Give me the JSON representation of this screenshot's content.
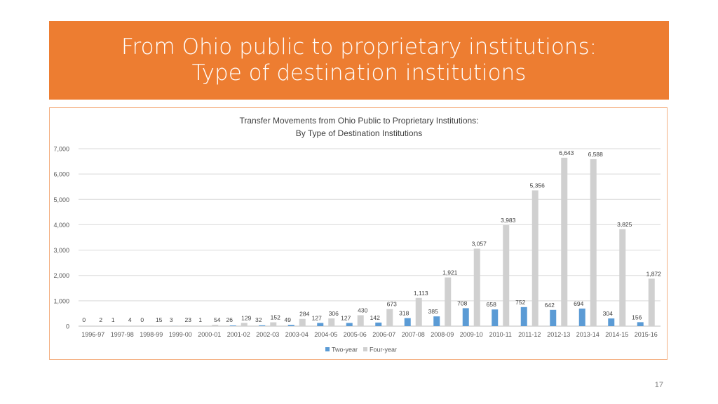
{
  "slide": {
    "title_lines": [
      "From Ohio public to proprietary institutions:",
      "Type of destination institutions"
    ],
    "page_number": "17"
  },
  "chart_data": {
    "type": "bar",
    "title_lines": [
      "Transfer Movements from Ohio Public to Proprietary Institutions:",
      "By Type of Destination Institutions"
    ],
    "categories": [
      "1996-97",
      "1997-98",
      "1998-99",
      "1999-00",
      "2000-01",
      "2001-02",
      "2002-03",
      "2003-04",
      "2004-05",
      "2005-06",
      "2006-07",
      "2007-08",
      "2008-09",
      "2009-10",
      "2010-11",
      "2011-12",
      "2012-13",
      "2013-14",
      "2014-15",
      "2015-16"
    ],
    "series": [
      {
        "name": "Two-year",
        "color": "#5B9BD5",
        "values": [
          0,
          1,
          0,
          3,
          1,
          26,
          32,
          49,
          127,
          127,
          142,
          318,
          385,
          708,
          658,
          752,
          642,
          694,
          304,
          156
        ]
      },
      {
        "name": "Four-year",
        "color": "#D0D0D0",
        "values": [
          2,
          4,
          15,
          23,
          54,
          129,
          152,
          284,
          306,
          430,
          673,
          1113,
          1921,
          3057,
          3983,
          5356,
          6643,
          6588,
          3825,
          1872
        ]
      }
    ],
    "y_ticks": [
      "0",
      "1,000",
      "2,000",
      "3,000",
      "4,000",
      "5,000",
      "6,000",
      "7,000"
    ],
    "ylim": [
      0,
      7000
    ],
    "grid": true,
    "legend_position": "bottom",
    "xlabel": "",
    "ylabel": ""
  }
}
